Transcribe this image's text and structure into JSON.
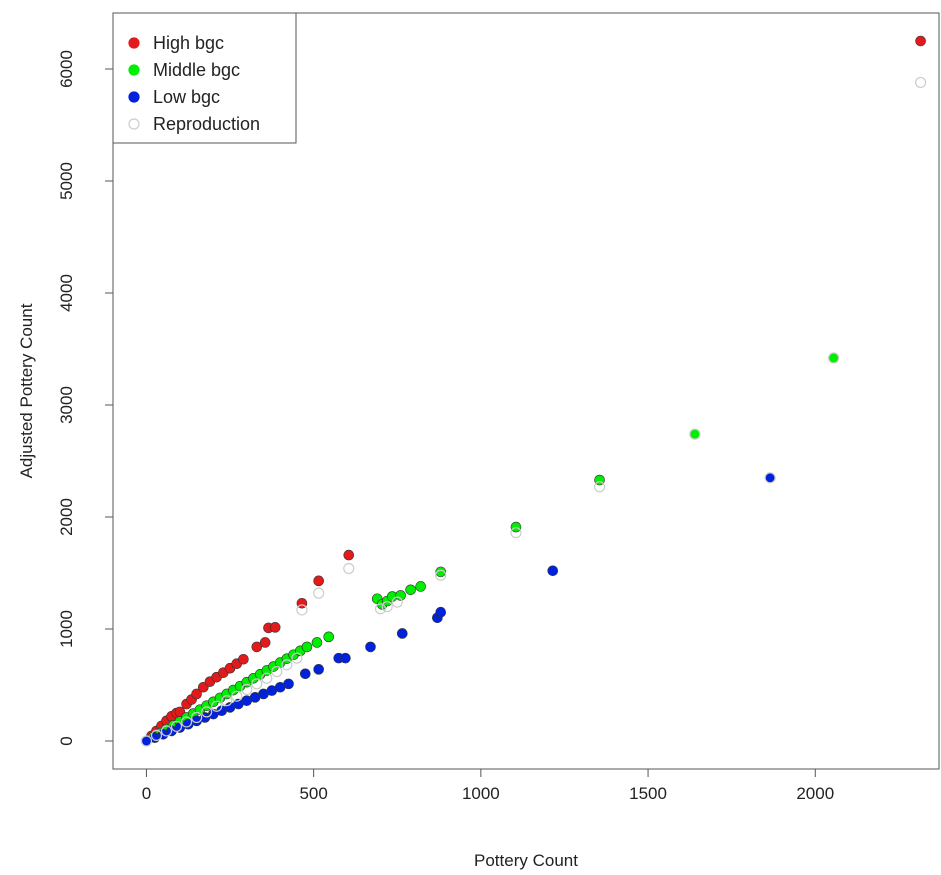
{
  "chart_data": {
    "type": "scatter",
    "xlabel": "Pottery Count",
    "ylabel": "Adjusted Pottery Count",
    "xlim": [
      -100,
      2370
    ],
    "ylim": [
      -250,
      6500
    ],
    "xticks": [
      0,
      500,
      1000,
      1500,
      2000
    ],
    "yticks": [
      0,
      1000,
      2000,
      3000,
      4000,
      5000,
      6000
    ],
    "grid": false,
    "legend_position": "top-left",
    "series": [
      {
        "name": "High bgc",
        "color": "#e31a1c",
        "marker": "filled-circle",
        "x": [
          0,
          15,
          30,
          45,
          60,
          75,
          90,
          100,
          120,
          135,
          150,
          170,
          190,
          210,
          230,
          250,
          270,
          290,
          330,
          355,
          365,
          385,
          465,
          515,
          605,
          2315
        ],
        "y": [
          0,
          45,
          90,
          135,
          180,
          220,
          250,
          260,
          330,
          370,
          420,
          480,
          530,
          570,
          610,
          650,
          690,
          730,
          840,
          880,
          1010,
          1015,
          1230,
          1430,
          1660,
          6250
        ]
      },
      {
        "name": "Middle bgc",
        "color": "#00ee00",
        "marker": "filled-circle",
        "x": [
          0,
          20,
          40,
          60,
          80,
          100,
          120,
          140,
          160,
          180,
          200,
          220,
          240,
          260,
          280,
          300,
          320,
          340,
          360,
          380,
          400,
          420,
          440,
          460,
          480,
          510,
          545,
          690,
          705,
          720,
          735,
          760,
          790,
          820,
          880,
          1105,
          1355,
          1640,
          2055
        ],
        "y": [
          0,
          35,
          70,
          105,
          140,
          175,
          210,
          245,
          280,
          315,
          350,
          385,
          420,
          455,
          490,
          525,
          560,
          595,
          630,
          665,
          700,
          735,
          770,
          805,
          840,
          880,
          930,
          1270,
          1220,
          1250,
          1290,
          1300,
          1350,
          1380,
          1510,
          1910,
          2330,
          2740,
          3420
        ]
      },
      {
        "name": "Low bgc",
        "color": "#0022dd",
        "marker": "filled-circle",
        "x": [
          0,
          25,
          50,
          75,
          100,
          125,
          150,
          175,
          200,
          225,
          250,
          275,
          300,
          325,
          350,
          375,
          400,
          425,
          475,
          515,
          575,
          595,
          670,
          765,
          870,
          880,
          1215,
          1865
        ],
        "y": [
          0,
          30,
          60,
          90,
          120,
          150,
          180,
          210,
          240,
          270,
          300,
          330,
          360,
          390,
          420,
          450,
          480,
          510,
          600,
          640,
          740,
          740,
          840,
          960,
          1100,
          1150,
          1520,
          2350
        ]
      },
      {
        "name": "Reproduction",
        "color": "#cccccc",
        "marker": "open-circle",
        "x": [
          0,
          30,
          60,
          90,
          120,
          150,
          180,
          210,
          240,
          270,
          300,
          330,
          360,
          390,
          420,
          450,
          465,
          515,
          605,
          700,
          720,
          750,
          880,
          1105,
          1355,
          1640,
          1865,
          2055,
          2315
        ],
        "y": [
          0,
          50,
          90,
          130,
          170,
          210,
          260,
          310,
          360,
          400,
          460,
          510,
          560,
          620,
          680,
          740,
          1170,
          1320,
          1540,
          1180,
          1200,
          1240,
          1480,
          1860,
          2270,
          2740,
          2350,
          3420,
          5880
        ]
      }
    ]
  }
}
